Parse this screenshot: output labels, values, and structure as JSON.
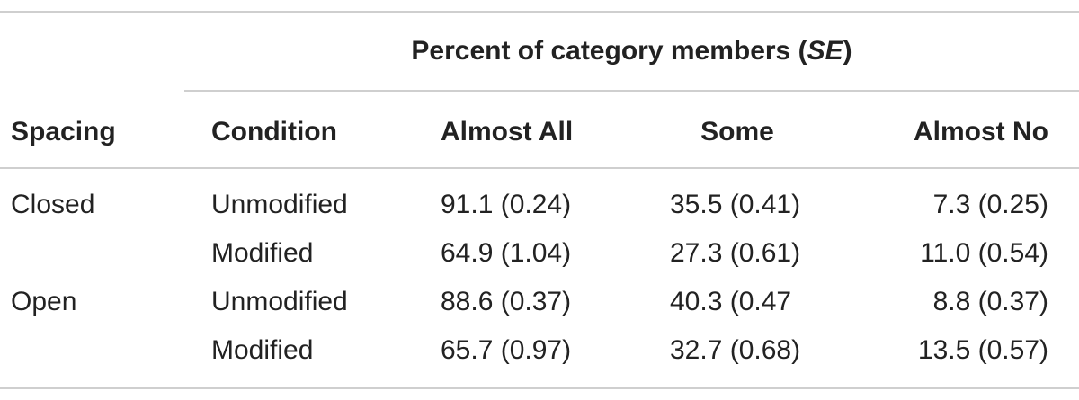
{
  "table": {
    "group_header": {
      "prefix": "Percent of category members (",
      "italic": "SE",
      "suffix": ")"
    },
    "columns": {
      "spacing": "Spacing",
      "condition": "Condition",
      "almost_all": "Almost All",
      "some": "Some",
      "almost_no": "Almost No"
    },
    "rows": [
      {
        "spacing": "Closed",
        "condition": "Unmodified",
        "almost_all": "91.1 (0.24)",
        "some": "35.5 (0.41)",
        "almost_no": "7.3 (0.25)"
      },
      {
        "spacing": "",
        "condition": "Modified",
        "almost_all": "64.9 (1.04)",
        "some": "27.3 (0.61)",
        "almost_no": "11.0 (0.54)"
      },
      {
        "spacing": "Open",
        "condition": "Unmodified",
        "almost_all": "88.6 (0.37)",
        "some": "40.3 (0.47",
        "almost_no": "8.8 (0.37)"
      },
      {
        "spacing": "",
        "condition": "Modified",
        "almost_all": "65.7 (0.97)",
        "some": "32.7 (0.68)",
        "almost_no": "13.5 (0.57)"
      }
    ]
  }
}
